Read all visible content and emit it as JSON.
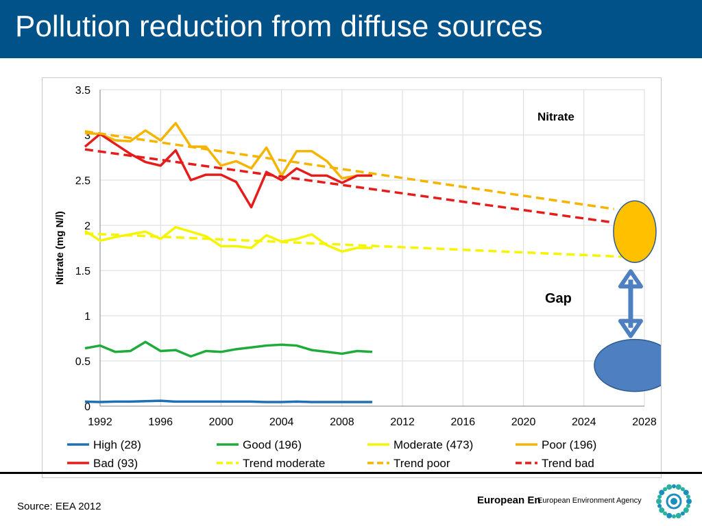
{
  "slide": {
    "title": "Pollution reduction from diffuse sources",
    "source": "Source: EEA 2012",
    "logo_text_primary": "European En",
    "logo_text_secondary": "European Environment Agency"
  },
  "colors": {
    "title_bar": "#005288",
    "high": "#1f6fb4",
    "good": "#1faa3c",
    "moderate": "#f5f500",
    "poor": "#f5b400",
    "bad": "#e51c1c",
    "trend_moderate": "#f5f500",
    "trend_poor": "#f5b400",
    "trend_bad": "#e51c1c",
    "target_ellipse": "#4e7fc0",
    "poor_ellipse": "#ffc000",
    "gap_arrow": "#4e7fc0"
  },
  "chart_data": {
    "type": "line",
    "title": "Nitrate",
    "xlabel": "",
    "ylabel": "Nitrate (mg N/l)",
    "xlim": [
      1992,
      2028
    ],
    "ylim": [
      0,
      3.5
    ],
    "x_ticks": [
      "1992",
      "1996",
      "2000",
      "2004",
      "2008",
      "2012",
      "2016",
      "2020",
      "2024",
      "2028"
    ],
    "y_ticks": [
      "0",
      "0.5",
      "1",
      "1.5",
      "2",
      "2.5",
      "3",
      "3.5"
    ],
    "grid": "vertical and horizontal",
    "x": [
      1991,
      1992,
      1993,
      1994,
      1995,
      1996,
      1997,
      1998,
      1999,
      2000,
      2001,
      2002,
      2003,
      2004,
      2005,
      2006,
      2007,
      2008,
      2009,
      2010
    ],
    "series": [
      {
        "name": "High (28)",
        "key": "high",
        "style": "solid",
        "values": [
          0.05,
          0.045,
          0.05,
          0.05,
          0.055,
          0.06,
          0.05,
          0.05,
          0.05,
          0.05,
          0.05,
          0.05,
          0.045,
          0.045,
          0.05,
          0.045,
          0.045,
          0.045,
          0.045,
          0.045
        ]
      },
      {
        "name": "Good (196)",
        "key": "good",
        "style": "solid",
        "values": [
          0.64,
          0.67,
          0.6,
          0.61,
          0.71,
          0.61,
          0.62,
          0.55,
          0.61,
          0.6,
          0.63,
          0.65,
          0.67,
          0.68,
          0.67,
          0.62,
          0.6,
          0.58,
          0.61,
          0.6
        ]
      },
      {
        "name": "Moderate (473)",
        "key": "moderate",
        "style": "solid",
        "values": [
          1.94,
          1.83,
          1.87,
          1.9,
          1.93,
          1.85,
          1.98,
          1.93,
          1.88,
          1.77,
          1.77,
          1.75,
          1.89,
          1.82,
          1.85,
          1.9,
          1.78,
          1.71,
          1.75,
          1.75
        ]
      },
      {
        "name": "Poor (196)",
        "key": "poor",
        "style": "solid",
        "values": [
          3.02,
          3.01,
          2.94,
          2.93,
          3.05,
          2.94,
          3.13,
          2.87,
          2.87,
          2.66,
          2.71,
          2.63,
          2.86,
          2.55,
          2.82,
          2.82,
          2.71,
          2.52,
          2.55,
          2.55
        ]
      },
      {
        "name": "Bad (93)",
        "key": "bad",
        "style": "solid",
        "values": [
          2.87,
          3.01,
          2.9,
          2.79,
          2.7,
          2.66,
          2.83,
          2.5,
          2.56,
          2.56,
          2.48,
          2.2,
          2.59,
          2.5,
          2.63,
          2.55,
          2.55,
          2.47,
          2.55,
          2.55
        ]
      },
      {
        "name": "Trend moderate",
        "key": "trend_moderate",
        "style": "dashed",
        "points": [
          [
            1991,
            1.91
          ],
          [
            2027,
            1.65
          ]
        ]
      },
      {
        "name": "Trend poor",
        "key": "trend_poor",
        "style": "dashed",
        "points": [
          [
            1991,
            3.04
          ],
          [
            2026,
            2.18
          ]
        ]
      },
      {
        "name": "Trend bad",
        "key": "trend_bad",
        "style": "dashed",
        "points": [
          [
            1991,
            2.84
          ],
          [
            2026,
            2.03
          ]
        ]
      }
    ],
    "annotations": {
      "gap_label": "Gap",
      "current_ellipse": {
        "x": 2027,
        "y": 1.93
      },
      "target_ellipse": {
        "x": 2027,
        "y": 0.45
      }
    },
    "legend": {
      "placement": "bottom",
      "entries": [
        {
          "label": "High (28)",
          "key": "high",
          "style": "solid"
        },
        {
          "label": "Good (196)",
          "key": "good",
          "style": "solid"
        },
        {
          "label": "Moderate (473)",
          "key": "moderate",
          "style": "solid"
        },
        {
          "label": "Poor (196)",
          "key": "poor",
          "style": "solid"
        },
        {
          "label": "Bad (93)",
          "key": "bad",
          "style": "solid"
        },
        {
          "label": "Trend moderate",
          "key": "trend_moderate",
          "style": "dashed"
        },
        {
          "label": "Trend poor",
          "key": "trend_poor",
          "style": "dashed"
        },
        {
          "label": "Trend bad",
          "key": "trend_bad",
          "style": "dashed"
        }
      ]
    }
  }
}
